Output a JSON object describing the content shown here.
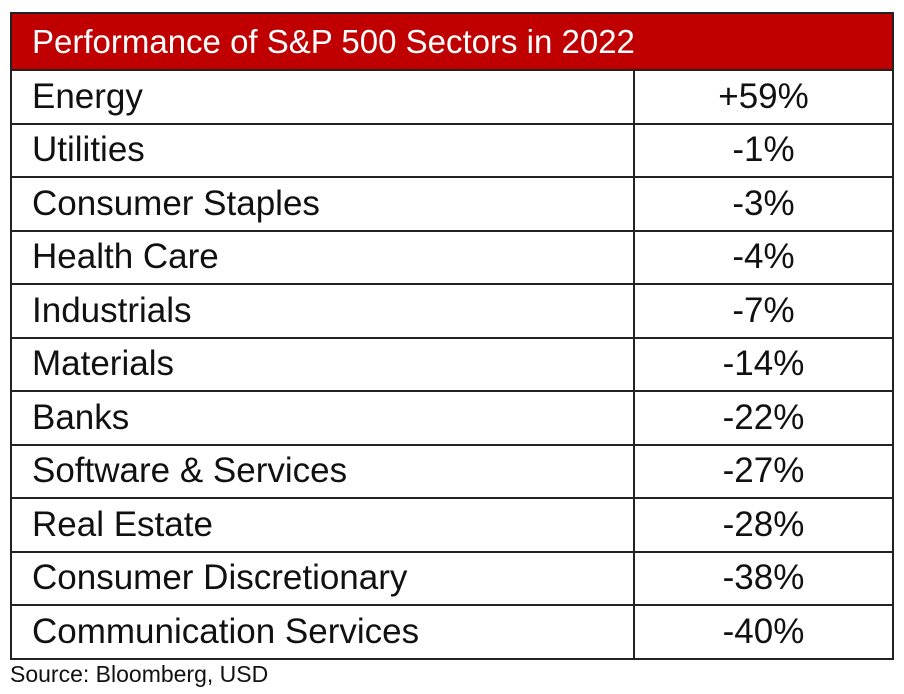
{
  "table": {
    "title": "Performance of S&P 500 Sectors in 2022",
    "rows": [
      [
        "Energy",
        "+59%"
      ],
      [
        "Utilities",
        "-1%"
      ],
      [
        "Consumer Staples",
        "-3%"
      ],
      [
        "Health Care",
        "-4%"
      ],
      [
        "Industrials",
        "-7%"
      ],
      [
        "Materials",
        "-14%"
      ],
      [
        "Banks",
        "-22%"
      ],
      [
        "Software & Services",
        "-27%"
      ],
      [
        "Real Estate",
        "-28%"
      ],
      [
        "Consumer Discretionary",
        "-38%"
      ],
      [
        "Communication Services",
        "-40%"
      ]
    ]
  },
  "source": "Source: Bloomberg, USD"
}
